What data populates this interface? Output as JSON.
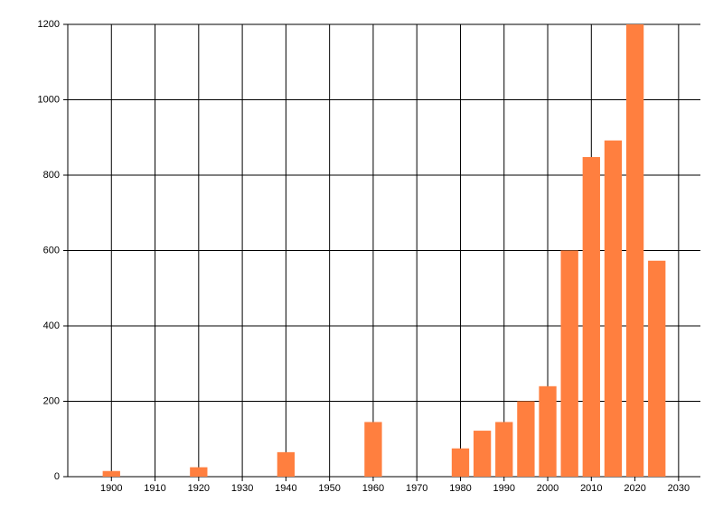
{
  "chart_data": {
    "type": "bar",
    "x": [
      1900,
      1920,
      1940,
      1960,
      1980,
      1985,
      1990,
      1995,
      2000,
      2005,
      2010,
      2015,
      2020,
      2025
    ],
    "values": [
      15,
      25,
      65,
      145,
      75,
      122,
      145,
      200,
      240,
      600,
      848,
      892,
      1200,
      573
    ],
    "color": "#ff7f3f",
    "xlim": [
      1890,
      2035
    ],
    "xticks": [
      1900,
      1910,
      1920,
      1930,
      1940,
      1950,
      1960,
      1970,
      1980,
      1990,
      2000,
      2010,
      2020,
      2030
    ],
    "ylim": [
      0,
      1200
    ],
    "yticks": [
      0,
      200,
      400,
      600,
      800,
      1000,
      1200
    ],
    "grid": true
  }
}
